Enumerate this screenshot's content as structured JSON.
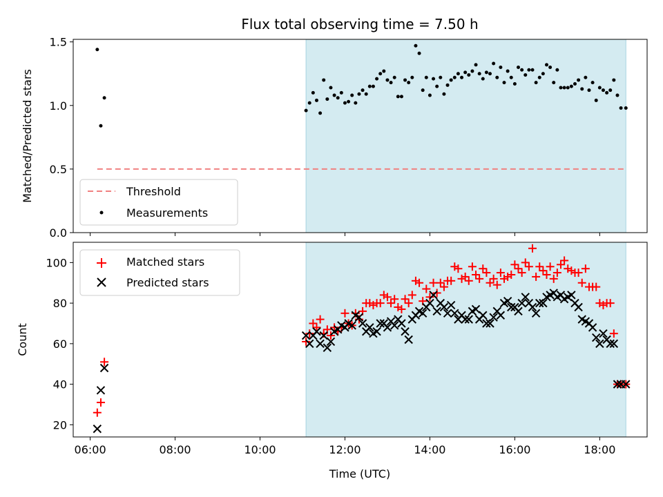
{
  "chart_data": [
    {
      "type": "scatter",
      "title": "Flux total observing time = 7.50 h",
      "ylabel": "Matched/Predicted stars",
      "xlabel": "",
      "xlim": [
        "05:36",
        "19:07"
      ],
      "ylim": [
        0,
        1.52
      ],
      "yticks": [
        0,
        0.5,
        1.0,
        1.5
      ],
      "ytick_labels": [
        "0.0",
        "0.5",
        "1.0",
        "1.5"
      ],
      "grid": false,
      "legend_position": "lower-left",
      "observing_window": {
        "start": "11:05",
        "end": "18:37",
        "color": "#d4ebf1"
      },
      "threshold": {
        "name": "Threshold",
        "y": 0.5,
        "x_start": "06:10",
        "x_end": "18:37",
        "color": "#f08080"
      },
      "series": [
        {
          "name": "Measurements",
          "color": "#000000",
          "x": [
            "06:10",
            "06:15",
            "06:20",
            "11:05",
            "11:10",
            "11:15",
            "11:20",
            "11:25",
            "11:30",
            "11:35",
            "11:40",
            "11:45",
            "11:50",
            "11:55",
            "12:00",
            "12:05",
            "12:10",
            "12:15",
            "12:20",
            "12:25",
            "12:30",
            "12:35",
            "12:40",
            "12:45",
            "12:50",
            "12:55",
            "13:00",
            "13:05",
            "13:10",
            "13:15",
            "13:20",
            "13:25",
            "13:30",
            "13:35",
            "13:40",
            "13:45",
            "13:50",
            "13:55",
            "14:00",
            "14:05",
            "14:10",
            "14:15",
            "14:20",
            "14:25",
            "14:30",
            "14:35",
            "14:40",
            "14:45",
            "14:50",
            "14:55",
            "15:00",
            "15:05",
            "15:10",
            "15:15",
            "15:20",
            "15:25",
            "15:30",
            "15:35",
            "15:40",
            "15:45",
            "15:50",
            "15:55",
            "16:00",
            "16:05",
            "16:10",
            "16:15",
            "16:20",
            "16:25",
            "16:30",
            "16:35",
            "16:40",
            "16:45",
            "16:50",
            "16:55",
            "17:00",
            "17:05",
            "17:10",
            "17:15",
            "17:20",
            "17:25",
            "17:30",
            "17:35",
            "17:40",
            "17:45",
            "17:50",
            "17:55",
            "18:00",
            "18:05",
            "18:10",
            "18:15",
            "18:20",
            "18:25",
            "18:30",
            "18:37"
          ],
          "y": [
            1.44,
            0.84,
            1.06,
            0.96,
            1.02,
            1.1,
            1.04,
            0.94,
            1.2,
            1.05,
            1.14,
            1.08,
            1.06,
            1.1,
            1.02,
            1.03,
            1.08,
            1.02,
            1.09,
            1.12,
            1.09,
            1.15,
            1.15,
            1.21,
            1.25,
            1.27,
            1.2,
            1.18,
            1.22,
            1.07,
            1.07,
            1.2,
            1.18,
            1.22,
            1.47,
            1.41,
            1.12,
            1.22,
            1.08,
            1.21,
            1.15,
            1.22,
            1.09,
            1.16,
            1.2,
            1.22,
            1.25,
            1.22,
            1.26,
            1.24,
            1.27,
            1.32,
            1.25,
            1.21,
            1.26,
            1.25,
            1.33,
            1.22,
            1.3,
            1.18,
            1.27,
            1.22,
            1.17,
            1.3,
            1.28,
            1.24,
            1.28,
            1.28,
            1.18,
            1.22,
            1.25,
            1.32,
            1.3,
            1.18,
            1.28,
            1.14,
            1.14,
            1.14,
            1.15,
            1.17,
            1.2,
            1.13,
            1.22,
            1.12,
            1.18,
            1.04,
            1.14,
            1.12,
            1.1,
            1.12,
            1.2,
            1.08,
            0.98,
            0.98
          ]
        }
      ]
    },
    {
      "type": "scatter",
      "title": "",
      "ylabel": "Count",
      "xlabel": "Time (UTC)",
      "xlim": [
        "05:36",
        "19:07"
      ],
      "ylim": [
        14,
        110
      ],
      "yticks": [
        20,
        40,
        60,
        80,
        100
      ],
      "xticks": [
        "06:00",
        "08:00",
        "10:00",
        "12:00",
        "14:00",
        "16:00",
        "18:00"
      ],
      "grid": false,
      "legend_position": "top-left",
      "observing_window": {
        "start": "11:05",
        "end": "18:37",
        "color": "#d4ebf1"
      },
      "series": [
        {
          "name": "Matched stars",
          "color": "#ff0000",
          "marker": "plus",
          "x": [
            "06:10",
            "06:15",
            "06:20",
            "11:05",
            "11:10",
            "11:15",
            "11:20",
            "11:25",
            "11:30",
            "11:35",
            "11:40",
            "11:45",
            "11:50",
            "11:55",
            "12:00",
            "12:05",
            "12:10",
            "12:15",
            "12:20",
            "12:25",
            "12:30",
            "12:35",
            "12:40",
            "12:45",
            "12:50",
            "12:55",
            "13:00",
            "13:05",
            "13:10",
            "13:15",
            "13:20",
            "13:25",
            "13:30",
            "13:35",
            "13:40",
            "13:45",
            "13:50",
            "13:55",
            "14:00",
            "14:05",
            "14:10",
            "14:15",
            "14:20",
            "14:25",
            "14:30",
            "14:35",
            "14:40",
            "14:45",
            "14:50",
            "14:55",
            "15:00",
            "15:05",
            "15:10",
            "15:15",
            "15:20",
            "15:25",
            "15:30",
            "15:35",
            "15:40",
            "15:45",
            "15:50",
            "15:55",
            "16:00",
            "16:05",
            "16:10",
            "16:15",
            "16:20",
            "16:25",
            "16:30",
            "16:35",
            "16:40",
            "16:45",
            "16:50",
            "16:55",
            "17:00",
            "17:05",
            "17:10",
            "17:15",
            "17:20",
            "17:25",
            "17:30",
            "17:35",
            "17:40",
            "17:45",
            "17:50",
            "17:55",
            "18:00",
            "18:05",
            "18:10",
            "18:15",
            "18:20",
            "18:25",
            "18:30",
            "18:37"
          ],
          "y": [
            26,
            31,
            51,
            61,
            65,
            70,
            68,
            72,
            65,
            67,
            64,
            68,
            66,
            68,
            75,
            70,
            69,
            75,
            72,
            76,
            80,
            80,
            79,
            80,
            80,
            84,
            83,
            80,
            82,
            78,
            77,
            82,
            80,
            84,
            91,
            90,
            81,
            87,
            83,
            90,
            85,
            90,
            88,
            91,
            91,
            98,
            97,
            92,
            93,
            91,
            98,
            94,
            92,
            97,
            95,
            90,
            92,
            89,
            95,
            92,
            93,
            94,
            99,
            97,
            95,
            100,
            98,
            107,
            93,
            98,
            96,
            94,
            98,
            92,
            95,
            99,
            101,
            97,
            96,
            95,
            95,
            90,
            97,
            88,
            88,
            88,
            80,
            79,
            80,
            80,
            65,
            40,
            40,
            40
          ]
        },
        {
          "name": "Predicted stars",
          "color": "#000000",
          "marker": "x",
          "x": [
            "06:10",
            "06:15",
            "06:20",
            "11:05",
            "11:10",
            "11:15",
            "11:20",
            "11:25",
            "11:30",
            "11:35",
            "11:40",
            "11:45",
            "11:50",
            "11:55",
            "12:00",
            "12:05",
            "12:10",
            "12:15",
            "12:20",
            "12:25",
            "12:30",
            "12:35",
            "12:40",
            "12:45",
            "12:50",
            "12:55",
            "13:00",
            "13:05",
            "13:10",
            "13:15",
            "13:20",
            "13:25",
            "13:30",
            "13:35",
            "13:40",
            "13:45",
            "13:50",
            "13:55",
            "14:00",
            "14:05",
            "14:10",
            "14:15",
            "14:20",
            "14:25",
            "14:30",
            "14:35",
            "14:40",
            "14:45",
            "14:50",
            "14:55",
            "15:00",
            "15:05",
            "15:10",
            "15:15",
            "15:20",
            "15:25",
            "15:30",
            "15:35",
            "15:40",
            "15:45",
            "15:50",
            "15:55",
            "16:00",
            "16:05",
            "16:10",
            "16:15",
            "16:20",
            "16:25",
            "16:30",
            "16:35",
            "16:40",
            "16:45",
            "16:50",
            "16:55",
            "17:00",
            "17:05",
            "17:10",
            "17:15",
            "17:20",
            "17:25",
            "17:30",
            "17:35",
            "17:40",
            "17:45",
            "17:50",
            "17:55",
            "18:00",
            "18:05",
            "18:10",
            "18:15",
            "18:20",
            "18:25",
            "18:30",
            "18:37"
          ],
          "y": [
            18,
            37,
            48,
            64,
            60,
            64,
            66,
            60,
            64,
            58,
            61,
            66,
            67,
            69,
            68,
            70,
            69,
            74,
            73,
            70,
            66,
            68,
            65,
            66,
            70,
            70,
            68,
            71,
            69,
            72,
            70,
            66,
            62,
            72,
            74,
            76,
            75,
            78,
            80,
            84,
            76,
            80,
            78,
            75,
            79,
            75,
            72,
            74,
            72,
            72,
            76,
            77,
            72,
            74,
            70,
            70,
            73,
            76,
            74,
            80,
            81,
            78,
            78,
            76,
            80,
            83,
            80,
            78,
            75,
            80,
            80,
            83,
            84,
            85,
            83,
            84,
            82,
            83,
            84,
            80,
            78,
            72,
            71,
            70,
            68,
            63,
            60,
            65,
            62,
            60,
            60,
            40,
            40,
            40
          ]
        }
      ]
    }
  ]
}
